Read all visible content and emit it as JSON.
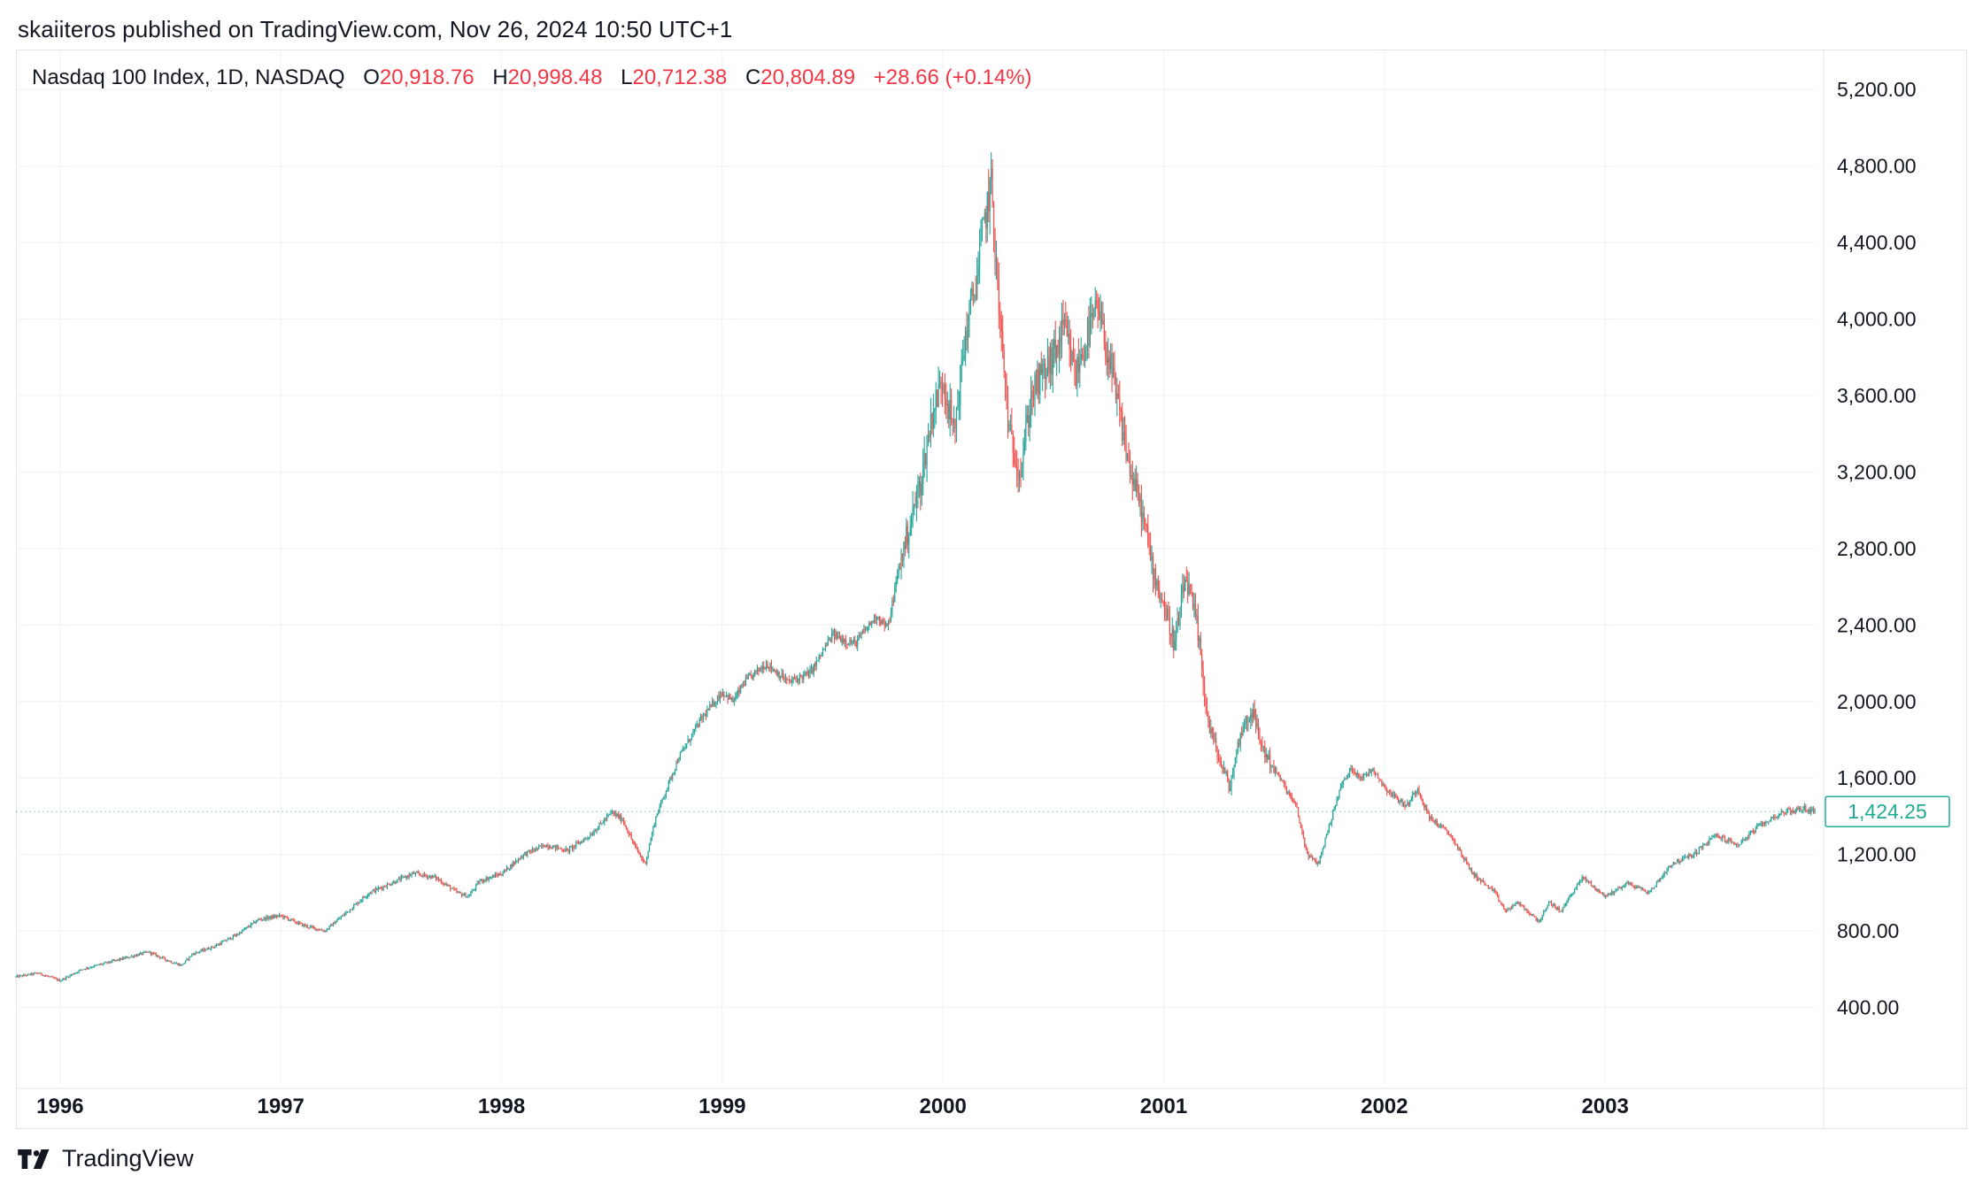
{
  "header": {
    "published_by": "skaiiteros published on TradingView.com, Nov 26, 2024 10:50 UTC+1"
  },
  "legend": {
    "symbol": "Nasdaq 100 Index, 1D, NASDAQ",
    "open_label": "O",
    "open": "20,918.76",
    "high_label": "H",
    "high": "20,998.48",
    "low_label": "L",
    "low": "20,712.38",
    "close_label": "C",
    "close": "20,804.89",
    "change": "+28.66 (+0.14%)"
  },
  "brand": {
    "name": "TradingView"
  },
  "colors": {
    "up": "#26a69a",
    "down": "#ef5350",
    "grid": "#f0f3fa",
    "text": "#131722",
    "last_price": "#22ab94"
  },
  "chart_data": {
    "type": "candlestick",
    "title": "",
    "xlabel": "",
    "ylabel": "",
    "y_ticks": [
      "400.00",
      "800.00",
      "1,200.00",
      "1,600.00",
      "2,000.00",
      "2,400.00",
      "2,800.00",
      "3,200.00",
      "3,600.00",
      "4,000.00",
      "4,400.00",
      "4,800.00",
      "5,200.00"
    ],
    "x_ticks": [
      "1996",
      "1997",
      "1998",
      "1999",
      "2000",
      "2001",
      "2002",
      "2003"
    ],
    "ylim": [
      0,
      5400
    ],
    "xlim": [
      1995.8,
      2003.95
    ],
    "grid": true,
    "last_price_label": "1,424.25",
    "last_price": 1424.25,
    "series": [
      {
        "name": "",
        "x": [
          1995.8,
          1995.9,
          1996.0,
          1996.1,
          1996.2,
          1996.3,
          1996.4,
          1996.5,
          1996.55,
          1996.6,
          1996.7,
          1996.8,
          1996.9,
          1997.0,
          1997.1,
          1997.2,
          1997.3,
          1997.4,
          1997.5,
          1997.6,
          1997.7,
          1997.8,
          1997.85,
          1997.9,
          1998.0,
          1998.1,
          1998.2,
          1998.3,
          1998.4,
          1998.5,
          1998.55,
          1998.6,
          1998.65,
          1998.7,
          1998.75,
          1998.8,
          1998.9,
          1999.0,
          1999.05,
          1999.1,
          1999.2,
          1999.3,
          1999.4,
          1999.5,
          1999.6,
          1999.7,
          1999.75,
          1999.8,
          1999.9,
          1999.95,
          2000.0,
          2000.05,
          2000.1,
          2000.15,
          2000.2,
          2000.22,
          2000.25,
          2000.3,
          2000.35,
          2000.4,
          2000.45,
          2000.5,
          2000.55,
          2000.6,
          2000.65,
          2000.7,
          2000.75,
          2000.8,
          2000.85,
          2000.9,
          2000.95,
          2001.0,
          2001.05,
          2001.1,
          2001.15,
          2001.2,
          2001.25,
          2001.3,
          2001.35,
          2001.4,
          2001.45,
          2001.5,
          2001.55,
          2001.6,
          2001.65,
          2001.7,
          2001.75,
          2001.8,
          2001.85,
          2001.9,
          2001.95,
          2002.0,
          2002.05,
          2002.1,
          2002.15,
          2002.2,
          2002.3,
          2002.4,
          2002.5,
          2002.55,
          2002.6,
          2002.7,
          2002.75,
          2002.8,
          2002.85,
          2002.9,
          2003.0,
          2003.1,
          2003.2,
          2003.3,
          2003.4,
          2003.5,
          2003.6,
          2003.7,
          2003.8,
          2003.9,
          2003.95
        ],
        "values": [
          560,
          580,
          540,
          600,
          630,
          660,
          690,
          640,
          620,
          680,
          720,
          780,
          860,
          880,
          830,
          800,
          900,
          1000,
          1050,
          1100,
          1080,
          1000,
          980,
          1060,
          1100,
          1200,
          1250,
          1220,
          1300,
          1420,
          1380,
          1250,
          1150,
          1400,
          1550,
          1700,
          1900,
          2050,
          2000,
          2100,
          2200,
          2100,
          2150,
          2350,
          2300,
          2450,
          2380,
          2700,
          3150,
          3500,
          3700,
          3400,
          3900,
          4200,
          4600,
          4700,
          4100,
          3400,
          3200,
          3600,
          3700,
          3800,
          3950,
          3700,
          3900,
          4050,
          3800,
          3500,
          3200,
          3000,
          2700,
          2500,
          2300,
          2650,
          2400,
          1900,
          1700,
          1550,
          1850,
          1950,
          1750,
          1650,
          1550,
          1450,
          1200,
          1150,
          1350,
          1550,
          1650,
          1600,
          1650,
          1550,
          1500,
          1450,
          1550,
          1400,
          1300,
          1100,
          1000,
          900,
          950,
          850,
          950,
          900,
          1000,
          1080,
          980,
          1050,
          1000,
          1150,
          1200,
          1300,
          1250,
          1350,
          1420,
          1440,
          1424
        ]
      }
    ]
  }
}
